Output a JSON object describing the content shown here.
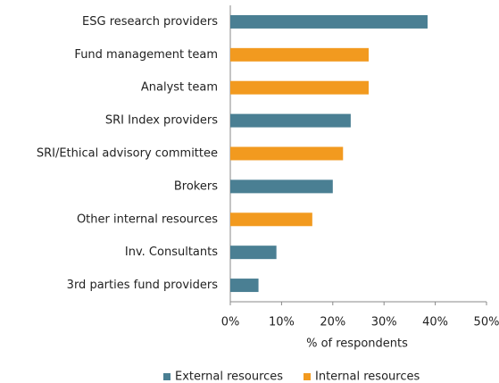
{
  "chart_data": {
    "type": "bar",
    "orientation": "horizontal",
    "categories": [
      "ESG research providers",
      "Fund management team",
      "Analyst team",
      "SRI Index providers",
      "SRI/Ethical advisory committee",
      "Brokers",
      "Other internal resources",
      "Inv. Consultants",
      "3rd parties fund providers"
    ],
    "series": [
      {
        "name": "External resources",
        "color": "#4a7f93",
        "values": [
          38.5,
          null,
          null,
          23.5,
          null,
          20,
          null,
          9,
          5.5
        ]
      },
      {
        "name": "Internal resources",
        "color": "#f29a1f",
        "values": [
          null,
          27,
          27,
          null,
          22,
          null,
          16,
          null,
          null
        ]
      }
    ],
    "xlabel": "% of respondents",
    "xlim": [
      0,
      50
    ],
    "xticks": [
      {
        "value": 0,
        "label": "0%"
      },
      {
        "value": 10,
        "label": "10%"
      },
      {
        "value": 20,
        "label": "20%"
      },
      {
        "value": 30,
        "label": "30%"
      },
      {
        "value": 40,
        "label": "40%"
      },
      {
        "value": 50,
        "label": "50%"
      }
    ],
    "legend": "bottom"
  }
}
